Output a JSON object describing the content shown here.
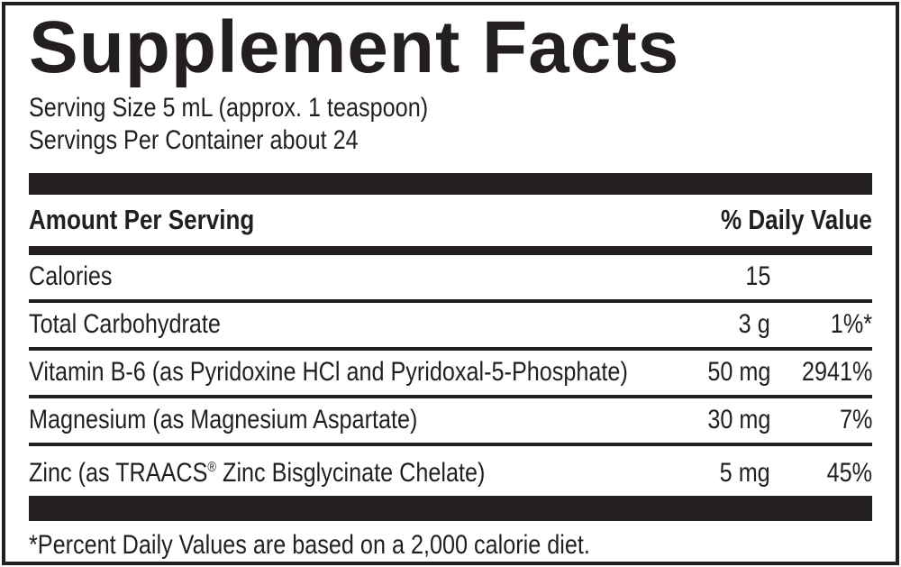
{
  "colors": {
    "ink": "#231f20",
    "paper": "#ffffff"
  },
  "label": {
    "title": "Supplement Facts",
    "serving": {
      "serving_size": "Serving Size 5 mL (approx. 1 teaspoon)",
      "servings_per_container": "Servings Per Container about 24"
    },
    "table": {
      "amount_header": "Amount Per Serving",
      "dv_header": "% Daily Value",
      "rows": [
        {
          "name": "Calories",
          "amount": "15",
          "dv": ""
        },
        {
          "name": "Total Carbohydrate",
          "amount": "3 g",
          "dv": "1%*"
        },
        {
          "name": "Vitamin B-6 (as Pyridoxine HCl and Pyridoxal-5-Phosphate)",
          "amount": "50 mg",
          "dv": "2941%"
        },
        {
          "name": "Magnesium (as Magnesium Aspartate)",
          "amount": "30 mg",
          "dv": "7%"
        },
        {
          "name_pre": "Zinc (as TRAACS",
          "trademark_symbol": "®",
          "name_post": " Zinc Bisglycinate Chelate)",
          "amount": "5 mg",
          "dv": "45%"
        }
      ]
    },
    "footnote": "*Percent Daily Values are based on a 2,000 calorie diet."
  }
}
